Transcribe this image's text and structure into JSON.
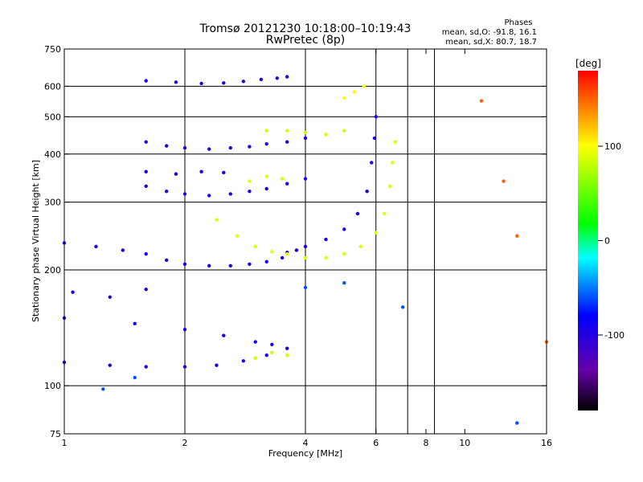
{
  "chart_data": {
    "type": "scatter",
    "title": "Tromsø 20121230 10:18:00–10:19:43",
    "subtitle": "RwPretec (8p)",
    "xlabel": "Frequency [MHz]",
    "ylabel": "Stationary phase Virtual Height [km]",
    "xscale": "log",
    "yscale": "log",
    "xlim": [
      1,
      16
    ],
    "ylim": [
      75,
      750
    ],
    "xticks": [
      1,
      2,
      4,
      6,
      8,
      10,
      16
    ],
    "xtick_labels": [
      "1",
      "2",
      "4",
      "6",
      "8",
      "10",
      "16"
    ],
    "x_gridlines": [
      2,
      4,
      6,
      7.2,
      8.4
    ],
    "yticks": [
      75,
      100,
      200,
      300,
      400,
      500,
      600,
      750
    ],
    "ytick_labels": [
      "75",
      "100",
      "200",
      "300",
      "400",
      "500",
      "600",
      "750"
    ],
    "y_gridlines": [
      100,
      200,
      300,
      400,
      500,
      600
    ],
    "grid": true,
    "stats": {
      "heading": "Phases",
      "line1": "mean, sd,O: -91.8, 16.1",
      "line2": "mean, sd,X: 80.7, 18.7"
    },
    "colorbar": {
      "label": "[deg]",
      "ticks": [
        100,
        0,
        -100
      ],
      "tick_labels": [
        "100",
        "0",
        "-100"
      ],
      "range": [
        -180,
        180
      ],
      "colors": [
        "#000000",
        "#6600aa",
        "#0000ff",
        "#00ffff",
        "#00ff00",
        "#ffff00",
        "#ff0000"
      ]
    },
    "series": [
      {
        "x": [
          1.0,
          1.3,
          1.6,
          2.0,
          2.4,
          2.8,
          3.2,
          3.6
        ],
        "y": [
          115,
          113,
          112,
          112,
          113,
          116,
          120,
          125
        ],
        "value": -95
      },
      {
        "x": [
          1.0,
          1.5,
          2.0,
          2.5,
          3.0,
          3.3
        ],
        "y": [
          150,
          145,
          140,
          135,
          130,
          128
        ],
        "value": -90
      },
      {
        "x": [
          1.05,
          1.3,
          1.6
        ],
        "y": [
          175,
          170,
          178
        ],
        "value": -95
      },
      {
        "x": [
          3.0,
          3.3,
          3.6
        ],
        "y": [
          118,
          122,
          120
        ],
        "value": 85
      },
      {
        "x": [
          1.0,
          1.2,
          1.4,
          1.6,
          1.8,
          2.0,
          2.3,
          2.6,
          2.9,
          3.2,
          3.5,
          3.8
        ],
        "y": [
          235,
          230,
          225,
          220,
          212,
          207,
          205,
          205,
          207,
          210,
          215,
          225
        ],
        "value": -90
      },
      {
        "x": [
          1.6,
          1.8,
          2.0,
          2.3,
          2.6,
          2.9,
          3.2,
          3.6,
          4.0
        ],
        "y": [
          330,
          320,
          315,
          312,
          315,
          320,
          325,
          335,
          345
        ],
        "value": -100
      },
      {
        "x": [
          1.6,
          1.8,
          2.0,
          2.3,
          2.6,
          2.9,
          3.2,
          3.6,
          4.0
        ],
        "y": [
          430,
          420,
          415,
          412,
          415,
          418,
          425,
          430,
          440
        ],
        "value": -100
      },
      {
        "x": [
          1.6,
          1.9,
          2.2,
          2.5,
          2.8,
          3.1,
          3.4,
          3.6
        ],
        "y": [
          620,
          615,
          610,
          612,
          618,
          625,
          630,
          635
        ],
        "value": -100
      },
      {
        "x": [
          1.6,
          1.9,
          2.2,
          2.5
        ],
        "y": [
          360,
          355,
          360,
          358
        ],
        "value": -90
      },
      {
        "x": [
          3.6,
          4.0,
          4.5,
          5.0,
          5.4,
          5.7,
          5.85,
          5.95,
          6.0
        ],
        "y": [
          222,
          230,
          240,
          255,
          280,
          320,
          380,
          440,
          500
        ],
        "value": -95
      },
      {
        "x": [
          2.4,
          2.7,
          3.0,
          3.3,
          3.6,
          4.0,
          4.5,
          5.0,
          5.5,
          6.0,
          6.3,
          6.5,
          6.6,
          6.7
        ],
        "y": [
          270,
          245,
          230,
          223,
          220,
          215,
          215,
          220,
          230,
          250,
          280,
          330,
          380,
          430
        ],
        "value": 90
      },
      {
        "x": [
          2.9,
          3.2,
          3.5
        ],
        "y": [
          340,
          350,
          345
        ],
        "value": 90
      },
      {
        "x": [
          3.2,
          3.6,
          4.0,
          4.5,
          5.0
        ],
        "y": [
          460,
          460,
          455,
          450,
          460
        ],
        "value": 85
      },
      {
        "x": [
          5.0,
          5.3,
          5.6
        ],
        "y": [
          560,
          580,
          600
        ],
        "value": 100
      },
      {
        "x": [
          11.0,
          12.5,
          13.5,
          16.0
        ],
        "y": [
          550,
          340,
          245,
          130
        ],
        "value": 150
      },
      {
        "x": [
          1.25,
          1.5,
          4.0,
          5.0,
          7.0,
          13.5
        ],
        "y": [
          98,
          105,
          180,
          185,
          160,
          80
        ],
        "value": -60
      }
    ]
  }
}
